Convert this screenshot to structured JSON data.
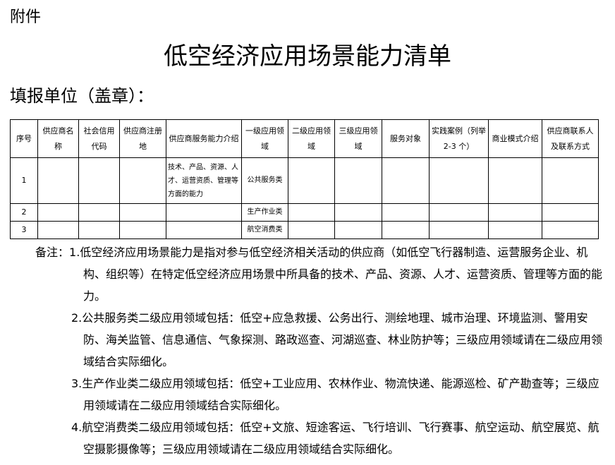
{
  "attachment": "附件",
  "title": "低空经济应用场景能力清单",
  "unit_label": "填报单位（盖章）：",
  "table": {
    "headers": [
      "序号",
      "供应商名称",
      "社会信用代码",
      "供应商注册地",
      "供应商服务能力介绍",
      "一级应用领域",
      "二级应用领域",
      "三级应用领域",
      "服务对象",
      "实践案例（列举 2-3 个）",
      "商业模式介绍",
      "供应商联系人及联系方式"
    ],
    "rows": [
      [
        "1",
        "",
        "",
        "",
        "技术、产品、资源、人才、运营资质、管理等方面的能力",
        "公共服务类",
        "",
        "",
        "",
        "",
        "",
        ""
      ],
      [
        "2",
        "",
        "",
        "",
        "",
        "生产作业类",
        "",
        "",
        "",
        "",
        "",
        ""
      ],
      [
        "3",
        "",
        "",
        "",
        "",
        "航空消费类",
        "",
        "",
        "",
        "",
        "",
        ""
      ]
    ]
  },
  "notes": {
    "label": "备注：",
    "items": [
      "1.低空经济应用场景能力是指对参与低空经济相关活动的供应商（如低空飞行器制造、运营服务企业、机构、组织等）在特定低空经济应用场景中所具备的技术、产品、资源、人才、运营资质、管理等方面的能力。",
      "2.公共服务类二级应用领域包括：低空+应急救援、公务出行、测绘地理、城市治理、环境监测、警用安防、海关监管、信息通信、气象探测、路政巡查、河湖巡查、林业防护等；三级应用领域请在二级应用领域结合实际细化。",
      "3.生产作业类二级应用领域包括：低空+工业应用、农林作业、物流快递、能源巡检、矿产勘查等；三级应用领域请在二级应用领域结合实际细化。",
      "4.航空消费类二级应用领域包括：低空+文旅、短途客运、飞行培训、飞行赛事、航空运动、航空展览、航空摄影摄像等；三级应用领域请在二级应用领域结合实际细化。"
    ]
  }
}
